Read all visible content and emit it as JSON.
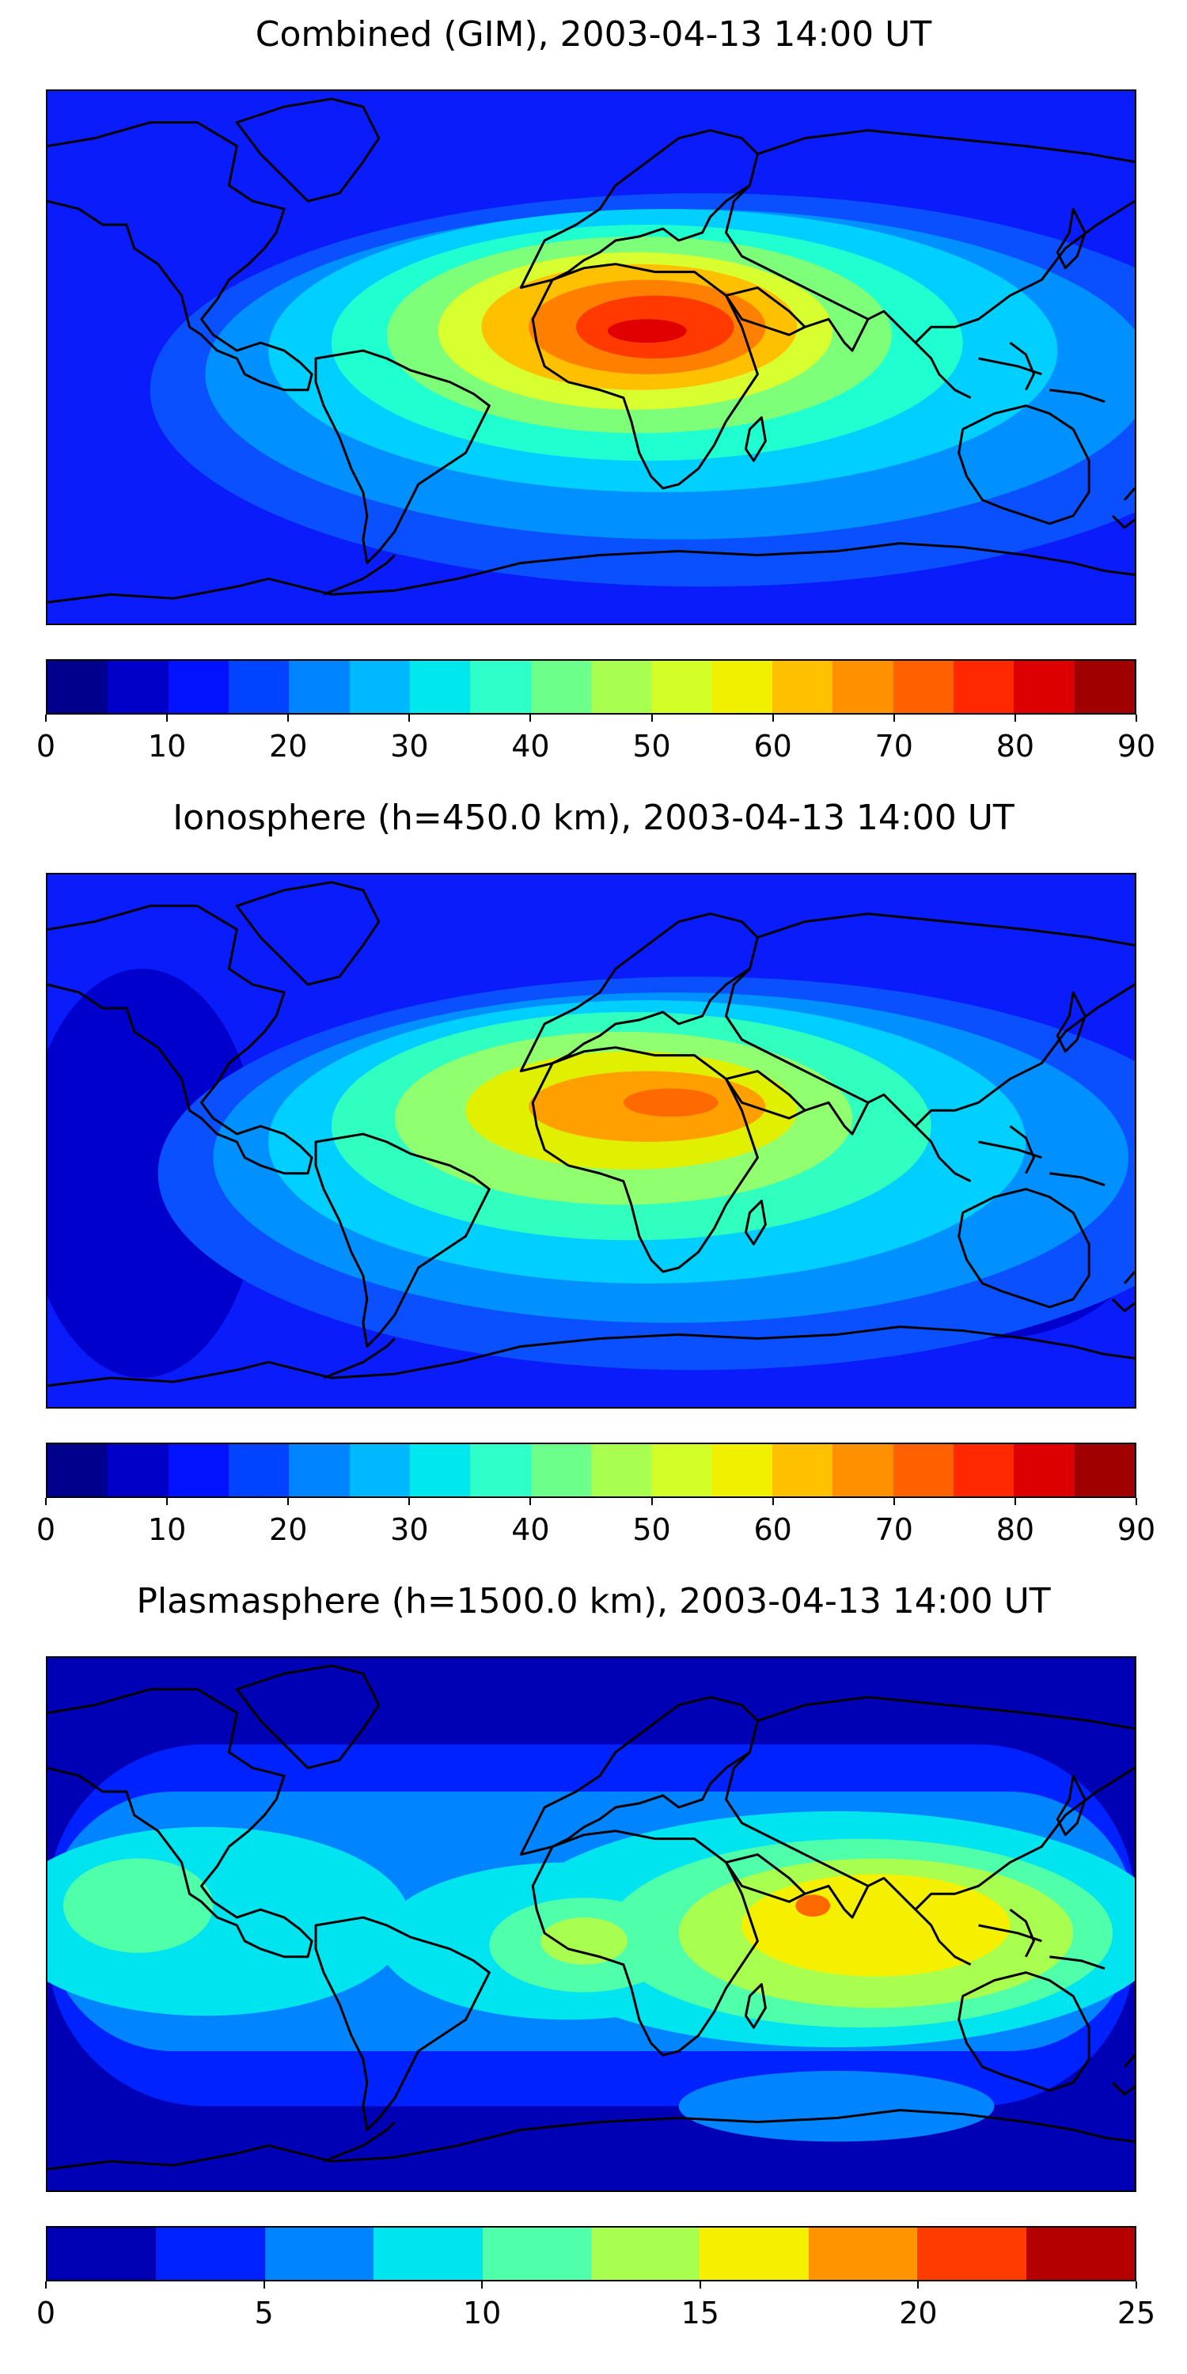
{
  "figure": {
    "panels": [
      {
        "title": "Combined (GIM), 2003-04-13 14:00 UT",
        "colorbar": {
          "min": 0,
          "max": 90,
          "ticks": [
            "0",
            "10",
            "20",
            "30",
            "40",
            "50",
            "60",
            "70",
            "80",
            "90"
          ],
          "colors": [
            "#00008c",
            "#0000c8",
            "#0012ff",
            "#0044ff",
            "#0084ff",
            "#00b8ff",
            "#00e8ee",
            "#2fffc8",
            "#6cff8a",
            "#a8ff50",
            "#d2ff28",
            "#f0f000",
            "#ffc000",
            "#ff9000",
            "#ff6000",
            "#ff2800",
            "#dc0000",
            "#a00000"
          ]
        },
        "map_colors": {
          "bg": "#0a1cfa",
          "b1": "#0a50ff",
          "b2": "#0090ff",
          "c1": "#00cfff",
          "g1": "#20ffd0",
          "g2": "#7dff7a",
          "y1": "#d8ff30",
          "o1": "#ffc000",
          "o2": "#ff8000",
          "r1": "#ff3a00",
          "r2": "#e00000"
        }
      },
      {
        "title": "Ionosphere  (h=450.0 km), 2003-04-13 14:00 UT",
        "colorbar": {
          "min": 0,
          "max": 90,
          "ticks": [
            "0",
            "10",
            "20",
            "30",
            "40",
            "50",
            "60",
            "70",
            "80",
            "90"
          ],
          "colors": [
            "#00008c",
            "#0000c8",
            "#0012ff",
            "#0044ff",
            "#0084ff",
            "#00b8ff",
            "#00e8ee",
            "#2fffc8",
            "#6cff8a",
            "#a8ff50",
            "#d2ff28",
            "#f0f000",
            "#ffc000",
            "#ff9000",
            "#ff6000",
            "#ff2800",
            "#dc0000",
            "#a00000"
          ]
        },
        "map_colors": {
          "bg": "#0a1cfa",
          "dk": "#0000cc",
          "b1": "#0a50ff",
          "b2": "#0090ff",
          "c1": "#00cfff",
          "g1": "#30ffc0",
          "g2": "#90ff70",
          "y1": "#e0f000",
          "o1": "#ffa000",
          "o2": "#ff6a00"
        }
      },
      {
        "title": "Plasmasphere (h=1500.0 km), 2003-04-13 14:00 UT",
        "colorbar": {
          "min": 0,
          "max": 25,
          "ticks": [
            "0",
            "5",
            "10",
            "15",
            "20",
            "25"
          ],
          "colors": [
            "#0000b4",
            "#0022ff",
            "#0084ff",
            "#00e4f0",
            "#50ffaa",
            "#a8ff50",
            "#f4f000",
            "#ff9400",
            "#ff3c00",
            "#b40000"
          ]
        },
        "map_colors": {
          "bg": "#0000b4",
          "b1": "#0022ff",
          "b2": "#0084ff",
          "c1": "#00e4f0",
          "g1": "#50ffaa",
          "g2": "#a8ff50",
          "y1": "#f4f000",
          "o1": "#ff6a00"
        }
      }
    ]
  }
}
